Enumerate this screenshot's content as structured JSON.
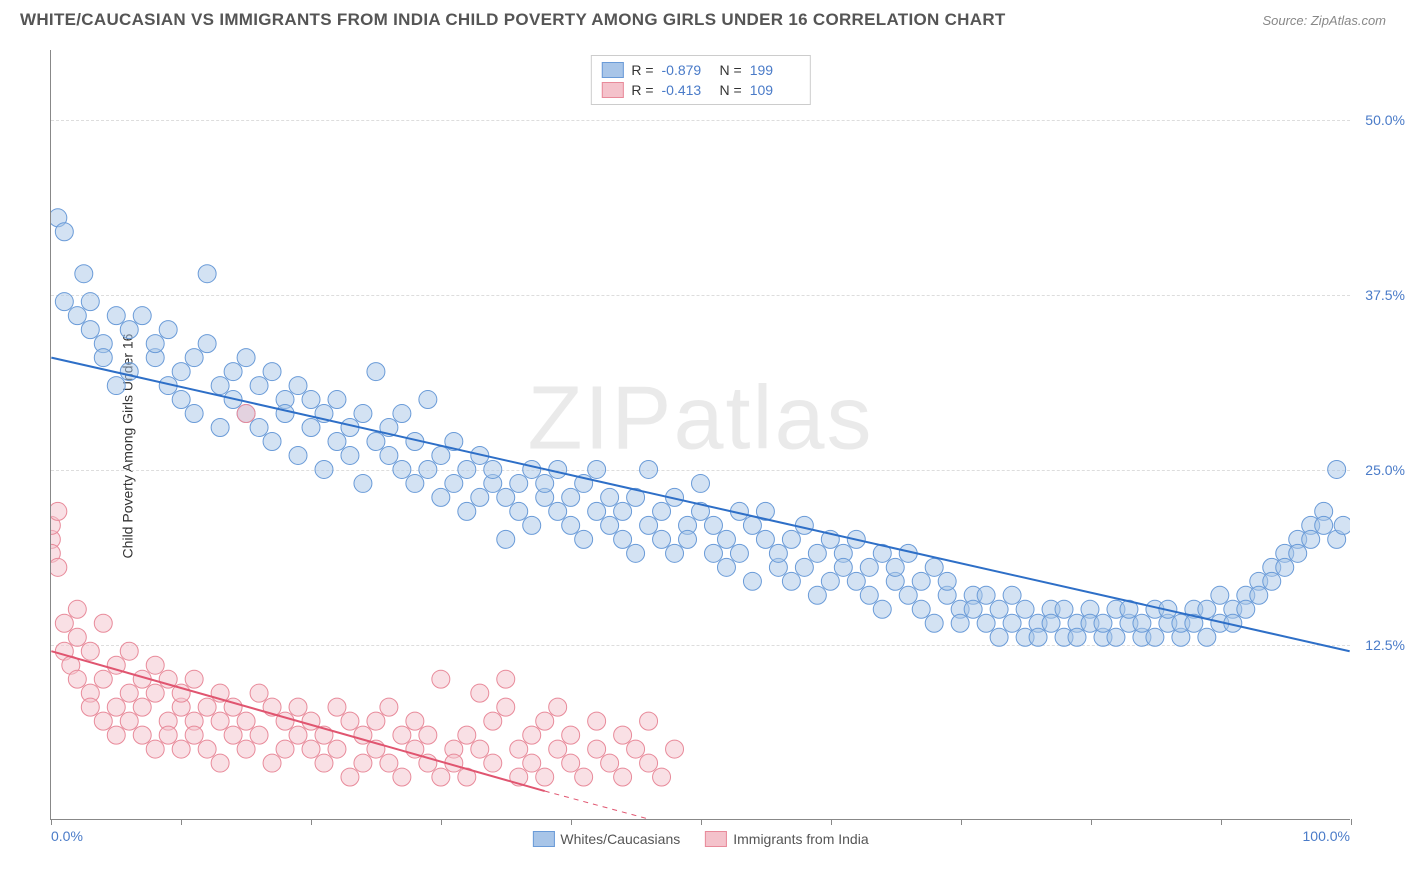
{
  "title": "WHITE/CAUCASIAN VS IMMIGRANTS FROM INDIA CHILD POVERTY AMONG GIRLS UNDER 16 CORRELATION CHART",
  "source": "Source: ZipAtlas.com",
  "watermark": "ZIPatlas",
  "y_axis_title": "Child Poverty Among Girls Under 16",
  "chart": {
    "type": "scatter",
    "background": "#ffffff",
    "grid_color": "#dddddd",
    "axis_color": "#888888",
    "xlim": [
      0,
      100
    ],
    "ylim": [
      0,
      55
    ],
    "x_ticks": [
      0,
      10,
      20,
      30,
      40,
      50,
      60,
      70,
      80,
      90,
      100
    ],
    "x_tick_labels": {
      "0": "0.0%",
      "100": "100.0%"
    },
    "y_ticks": [
      12.5,
      25.0,
      37.5,
      50.0
    ],
    "y_tick_labels": [
      "12.5%",
      "25.0%",
      "37.5%",
      "50.0%"
    ],
    "marker_radius": 9,
    "marker_opacity": 0.5,
    "series": [
      {
        "name": "Whites/Caucasians",
        "color_fill": "#a8c5e8",
        "color_stroke": "#6a9bd8",
        "trend_color": "#2e6fc7",
        "trend_width": 2,
        "R": "-0.879",
        "N": "199",
        "trend": {
          "x1": 0,
          "y1": 33,
          "x2": 100,
          "y2": 12
        },
        "points": [
          [
            0.5,
            43
          ],
          [
            1,
            42
          ],
          [
            1,
            37
          ],
          [
            2,
            36
          ],
          [
            2.5,
            39
          ],
          [
            3,
            35
          ],
          [
            3,
            37
          ],
          [
            4,
            34
          ],
          [
            4,
            33
          ],
          [
            5,
            36
          ],
          [
            5,
            31
          ],
          [
            6,
            35
          ],
          [
            6,
            32
          ],
          [
            7,
            36
          ],
          [
            8,
            33
          ],
          [
            8,
            34
          ],
          [
            9,
            31
          ],
          [
            9,
            35
          ],
          [
            10,
            32
          ],
          [
            10,
            30
          ],
          [
            11,
            33
          ],
          [
            11,
            29
          ],
          [
            12,
            34
          ],
          [
            12,
            39
          ],
          [
            13,
            31
          ],
          [
            13,
            28
          ],
          [
            14,
            32
          ],
          [
            14,
            30
          ],
          [
            15,
            29
          ],
          [
            15,
            33
          ],
          [
            16,
            31
          ],
          [
            16,
            28
          ],
          [
            17,
            32
          ],
          [
            17,
            27
          ],
          [
            18,
            30
          ],
          [
            18,
            29
          ],
          [
            19,
            31
          ],
          [
            19,
            26
          ],
          [
            20,
            28
          ],
          [
            20,
            30
          ],
          [
            21,
            29
          ],
          [
            21,
            25
          ],
          [
            22,
            30
          ],
          [
            22,
            27
          ],
          [
            23,
            28
          ],
          [
            23,
            26
          ],
          [
            24,
            29
          ],
          [
            24,
            24
          ],
          [
            25,
            32
          ],
          [
            25,
            27
          ],
          [
            26,
            26
          ],
          [
            26,
            28
          ],
          [
            27,
            25
          ],
          [
            27,
            29
          ],
          [
            28,
            24
          ],
          [
            28,
            27
          ],
          [
            29,
            30
          ],
          [
            29,
            25
          ],
          [
            30,
            23
          ],
          [
            30,
            26
          ],
          [
            31,
            27
          ],
          [
            31,
            24
          ],
          [
            32,
            25
          ],
          [
            32,
            22
          ],
          [
            33,
            26
          ],
          [
            33,
            23
          ],
          [
            34,
            24
          ],
          [
            34,
            25
          ],
          [
            35,
            20
          ],
          [
            35,
            23
          ],
          [
            36,
            24
          ],
          [
            36,
            22
          ],
          [
            37,
            25
          ],
          [
            37,
            21
          ],
          [
            38,
            23
          ],
          [
            38,
            24
          ],
          [
            39,
            22
          ],
          [
            39,
            25
          ],
          [
            40,
            21
          ],
          [
            40,
            23
          ],
          [
            41,
            24
          ],
          [
            41,
            20
          ],
          [
            42,
            25
          ],
          [
            42,
            22
          ],
          [
            43,
            21
          ],
          [
            43,
            23
          ],
          [
            44,
            20
          ],
          [
            44,
            22
          ],
          [
            45,
            23
          ],
          [
            45,
            19
          ],
          [
            46,
            25
          ],
          [
            46,
            21
          ],
          [
            47,
            20
          ],
          [
            47,
            22
          ],
          [
            48,
            19
          ],
          [
            48,
            23
          ],
          [
            49,
            21
          ],
          [
            49,
            20
          ],
          [
            50,
            22
          ],
          [
            50,
            24
          ],
          [
            51,
            19
          ],
          [
            51,
            21
          ],
          [
            52,
            20
          ],
          [
            52,
            18
          ],
          [
            53,
            22
          ],
          [
            53,
            19
          ],
          [
            54,
            21
          ],
          [
            54,
            17
          ],
          [
            55,
            20
          ],
          [
            55,
            22
          ],
          [
            56,
            18
          ],
          [
            56,
            19
          ],
          [
            57,
            17
          ],
          [
            57,
            20
          ],
          [
            58,
            21
          ],
          [
            58,
            18
          ],
          [
            59,
            19
          ],
          [
            59,
            16
          ],
          [
            60,
            20
          ],
          [
            60,
            17
          ],
          [
            61,
            19
          ],
          [
            61,
            18
          ],
          [
            62,
            17
          ],
          [
            62,
            20
          ],
          [
            63,
            16
          ],
          [
            63,
            18
          ],
          [
            64,
            19
          ],
          [
            64,
            15
          ],
          [
            65,
            17
          ],
          [
            65,
            18
          ],
          [
            66,
            16
          ],
          [
            66,
            19
          ],
          [
            67,
            15
          ],
          [
            67,
            17
          ],
          [
            68,
            18
          ],
          [
            68,
            14
          ],
          [
            69,
            16
          ],
          [
            69,
            17
          ],
          [
            70,
            15
          ],
          [
            70,
            14
          ],
          [
            71,
            16
          ],
          [
            71,
            15
          ],
          [
            72,
            14
          ],
          [
            72,
            16
          ],
          [
            73,
            13
          ],
          [
            73,
            15
          ],
          [
            74,
            14
          ],
          [
            74,
            16
          ],
          [
            75,
            13
          ],
          [
            75,
            15
          ],
          [
            76,
            14
          ],
          [
            76,
            13
          ],
          [
            77,
            15
          ],
          [
            77,
            14
          ],
          [
            78,
            13
          ],
          [
            78,
            15
          ],
          [
            79,
            14
          ],
          [
            79,
            13
          ],
          [
            80,
            15
          ],
          [
            80,
            14
          ],
          [
            81,
            13
          ],
          [
            81,
            14
          ],
          [
            82,
            15
          ],
          [
            82,
            13
          ],
          [
            83,
            14
          ],
          [
            83,
            15
          ],
          [
            84,
            13
          ],
          [
            84,
            14
          ],
          [
            85,
            15
          ],
          [
            85,
            13
          ],
          [
            86,
            14
          ],
          [
            86,
            15
          ],
          [
            87,
            13
          ],
          [
            87,
            14
          ],
          [
            88,
            15
          ],
          [
            88,
            14
          ],
          [
            89,
            13
          ],
          [
            89,
            15
          ],
          [
            90,
            14
          ],
          [
            90,
            16
          ],
          [
            91,
            15
          ],
          [
            91,
            14
          ],
          [
            92,
            16
          ],
          [
            92,
            15
          ],
          [
            93,
            17
          ],
          [
            93,
            16
          ],
          [
            94,
            18
          ],
          [
            94,
            17
          ],
          [
            95,
            19
          ],
          [
            95,
            18
          ],
          [
            96,
            20
          ],
          [
            96,
            19
          ],
          [
            97,
            21
          ],
          [
            97,
            20
          ],
          [
            98,
            22
          ],
          [
            98,
            21
          ],
          [
            99,
            25
          ],
          [
            99,
            20
          ],
          [
            99.5,
            21
          ]
        ]
      },
      {
        "name": "Immigrants from India",
        "color_fill": "#f4c2cb",
        "color_stroke": "#e88a9a",
        "trend_color": "#e05570",
        "trend_width": 2,
        "R": "-0.413",
        "N": "109",
        "trend": {
          "x1": 0,
          "y1": 12,
          "x2": 38,
          "y2": 2
        },
        "trend_dash": {
          "x1": 38,
          "y1": 2,
          "x2": 50,
          "y2": -1
        },
        "points": [
          [
            0,
            20
          ],
          [
            0,
            21
          ],
          [
            0,
            19
          ],
          [
            0.5,
            18
          ],
          [
            0.5,
            22
          ],
          [
            1,
            14
          ],
          [
            1,
            12
          ],
          [
            1.5,
            11
          ],
          [
            2,
            13
          ],
          [
            2,
            10
          ],
          [
            2,
            15
          ],
          [
            3,
            9
          ],
          [
            3,
            12
          ],
          [
            3,
            8
          ],
          [
            4,
            14
          ],
          [
            4,
            7
          ],
          [
            4,
            10
          ],
          [
            5,
            11
          ],
          [
            5,
            8
          ],
          [
            5,
            6
          ],
          [
            6,
            9
          ],
          [
            6,
            12
          ],
          [
            6,
            7
          ],
          [
            7,
            10
          ],
          [
            7,
            6
          ],
          [
            7,
            8
          ],
          [
            8,
            11
          ],
          [
            8,
            5
          ],
          [
            8,
            9
          ],
          [
            9,
            7
          ],
          [
            9,
            10
          ],
          [
            9,
            6
          ],
          [
            10,
            8
          ],
          [
            10,
            5
          ],
          [
            10,
            9
          ],
          [
            11,
            7
          ],
          [
            11,
            10
          ],
          [
            11,
            6
          ],
          [
            12,
            8
          ],
          [
            12,
            5
          ],
          [
            13,
            9
          ],
          [
            13,
            7
          ],
          [
            13,
            4
          ],
          [
            14,
            6
          ],
          [
            14,
            8
          ],
          [
            15,
            7
          ],
          [
            15,
            5
          ],
          [
            15,
            29
          ],
          [
            16,
            9
          ],
          [
            16,
            6
          ],
          [
            17,
            8
          ],
          [
            17,
            4
          ],
          [
            18,
            7
          ],
          [
            18,
            5
          ],
          [
            19,
            6
          ],
          [
            19,
            8
          ],
          [
            20,
            5
          ],
          [
            20,
            7
          ],
          [
            21,
            4
          ],
          [
            21,
            6
          ],
          [
            22,
            8
          ],
          [
            22,
            5
          ],
          [
            23,
            7
          ],
          [
            23,
            3
          ],
          [
            24,
            6
          ],
          [
            24,
            4
          ],
          [
            25,
            5
          ],
          [
            25,
            7
          ],
          [
            26,
            8
          ],
          [
            26,
            4
          ],
          [
            27,
            6
          ],
          [
            27,
            3
          ],
          [
            28,
            5
          ],
          [
            28,
            7
          ],
          [
            29,
            4
          ],
          [
            29,
            6
          ],
          [
            30,
            3
          ],
          [
            30,
            10
          ],
          [
            31,
            5
          ],
          [
            31,
            4
          ],
          [
            32,
            6
          ],
          [
            32,
            3
          ],
          [
            33,
            9
          ],
          [
            33,
            5
          ],
          [
            34,
            4
          ],
          [
            34,
            7
          ],
          [
            35,
            10
          ],
          [
            35,
            8
          ],
          [
            36,
            3
          ],
          [
            36,
            5
          ],
          [
            37,
            4
          ],
          [
            37,
            6
          ],
          [
            38,
            7
          ],
          [
            38,
            3
          ],
          [
            39,
            5
          ],
          [
            39,
            8
          ],
          [
            40,
            4
          ],
          [
            40,
            6
          ],
          [
            41,
            3
          ],
          [
            42,
            5
          ],
          [
            42,
            7
          ],
          [
            43,
            4
          ],
          [
            44,
            6
          ],
          [
            44,
            3
          ],
          [
            45,
            5
          ],
          [
            46,
            4
          ],
          [
            46,
            7
          ],
          [
            47,
            3
          ],
          [
            48,
            5
          ]
        ]
      }
    ]
  }
}
